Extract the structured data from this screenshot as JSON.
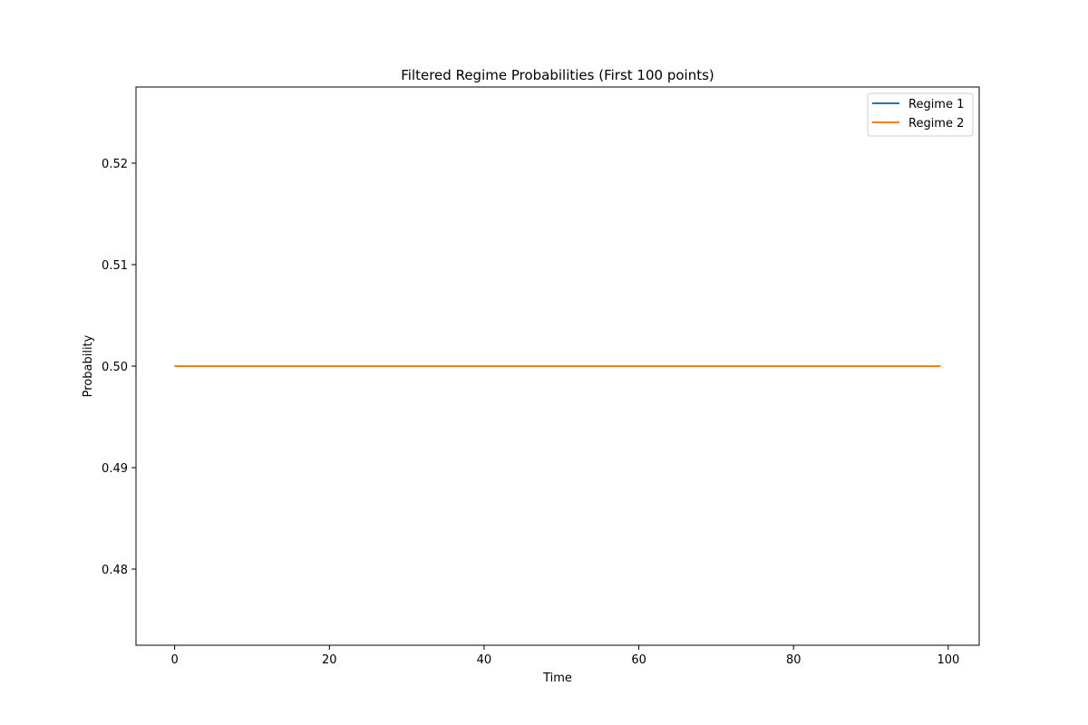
{
  "chart_data": {
    "type": "line",
    "title": "Filtered Regime Probabilities (First 100 points)",
    "xlabel": "Time",
    "ylabel": "Probability",
    "xlim": [
      -5,
      104
    ],
    "ylim": [
      0.4725,
      0.5275
    ],
    "x_ticks": [
      0,
      20,
      40,
      60,
      80,
      100
    ],
    "y_ticks": [
      0.48,
      0.49,
      0.5,
      0.51,
      0.52
    ],
    "x_tick_labels": [
      "0",
      "20",
      "40",
      "60",
      "80",
      "100"
    ],
    "y_tick_labels": [
      "0.48",
      "0.49",
      "0.50",
      "0.51",
      "0.52"
    ],
    "x_range": [
      0,
      99
    ],
    "grid": false,
    "legend_position": "top-right",
    "series": [
      {
        "name": "Regime 1",
        "color": "#1f77b4",
        "value": 0.5
      },
      {
        "name": "Regime 2",
        "color": "#ff7f0e",
        "value": 0.5
      }
    ]
  }
}
